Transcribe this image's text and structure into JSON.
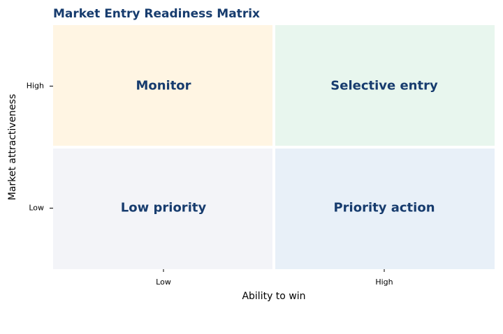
{
  "chart_data": {
    "type": "matrix",
    "title": "Market Entry Readiness Matrix",
    "x_label": "Ability to win",
    "y_label": "Market attractiveness",
    "x_categories": [
      "Low",
      "High"
    ],
    "y_categories": [
      "Low",
      "High"
    ],
    "cells": [
      [
        "Low priority",
        "Priority action"
      ],
      [
        "Monitor",
        "Selective entry"
      ]
    ],
    "cell_colors": [
      [
        "#f3f4f8",
        "#e8f0f8"
      ],
      [
        "#fff5e3",
        "#e8f6ee"
      ]
    ],
    "label_color": "#173c6e"
  }
}
